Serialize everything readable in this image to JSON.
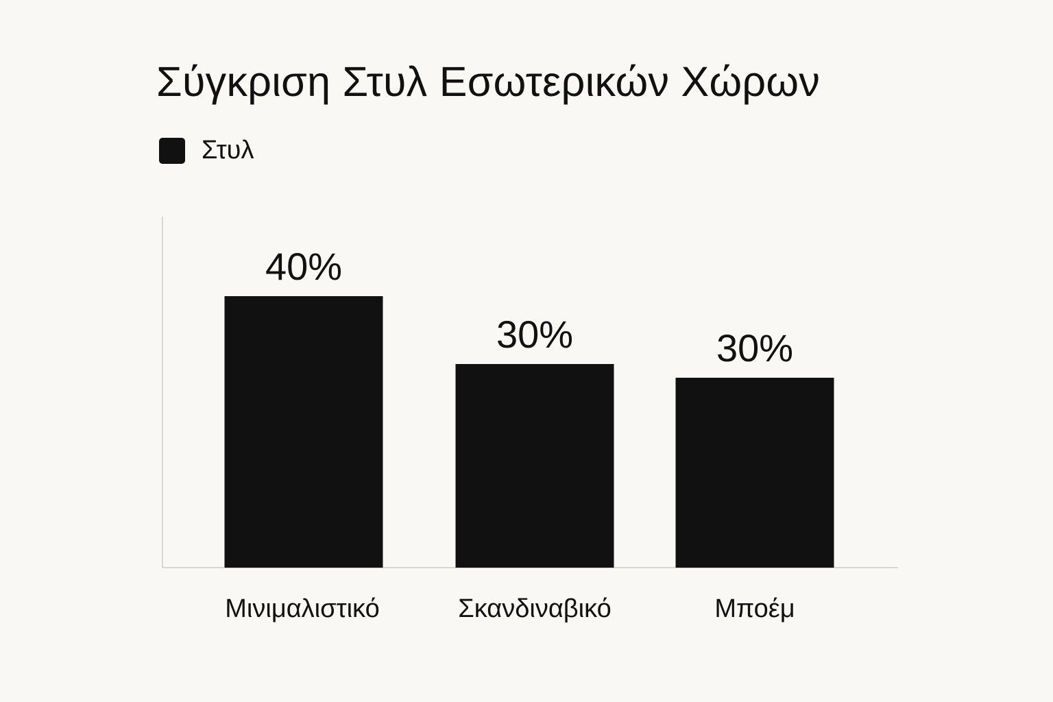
{
  "chart_data": {
    "type": "bar",
    "title": "Σύγκριση Στυλ Εσωτερικών Χώρων",
    "legend": {
      "entries": [
        "Στυλ"
      ],
      "placement": "top-left"
    },
    "categories": [
      "Μινιμαλιστικό",
      "Σκανδιναβικό",
      "Μποέμ"
    ],
    "series": [
      {
        "name": "Στυλ",
        "values": [
          40,
          30,
          30
        ]
      }
    ],
    "data_labels": [
      "40%",
      "30%",
      "30%"
    ],
    "ylim": [
      0,
      50
    ],
    "grid": false,
    "colors": {
      "bar": "#111111",
      "axis": "#d6d6d2",
      "background": "#f9f8f4"
    }
  }
}
